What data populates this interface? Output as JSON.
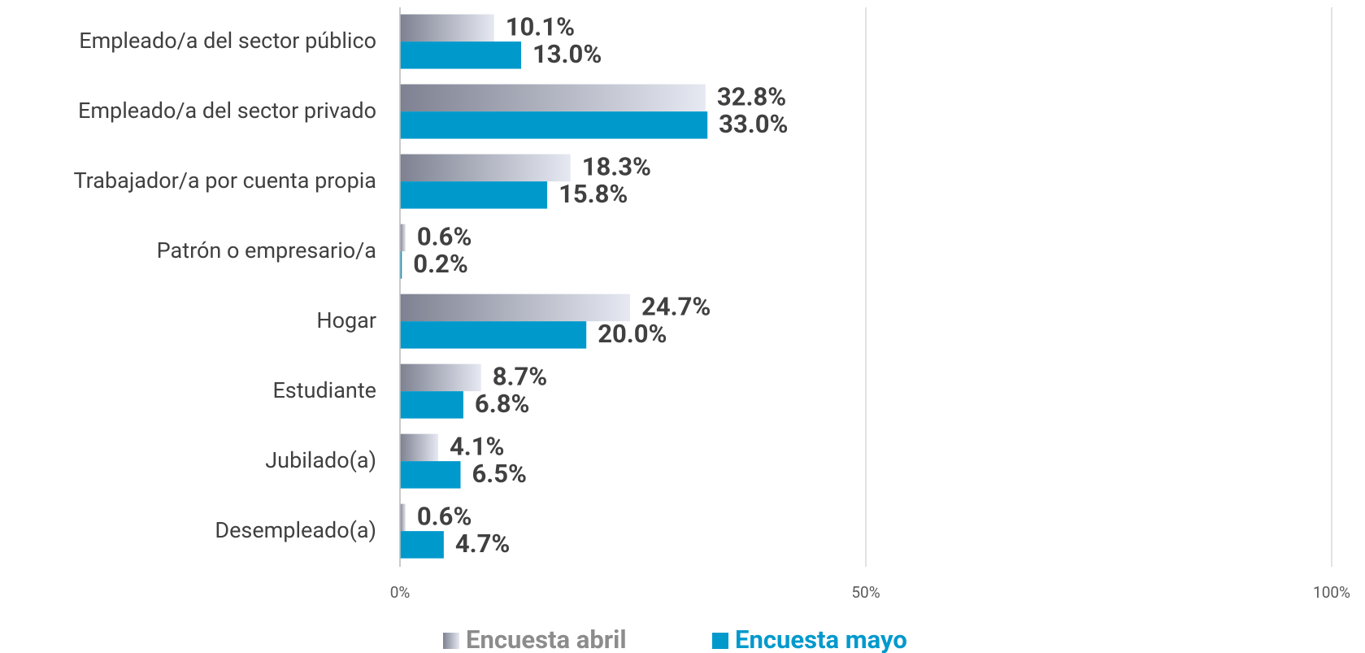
{
  "chart_data": {
    "type": "bar",
    "orientation": "horizontal",
    "categories": [
      "Empleado/a del sector público",
      "Empleado/a del sector privado",
      "Trabajador/a por cuenta propia",
      "Patrón o empresario/a",
      "Hogar",
      "Estudiante",
      "Jubilado(a)",
      "Desempleado(a)"
    ],
    "series": [
      {
        "name": "Encuesta abril",
        "color": "#e6e9f2",
        "values": [
          10.1,
          32.8,
          18.3,
          0.6,
          24.7,
          8.7,
          4.1,
          0.6
        ],
        "value_labels": [
          "10.1%",
          "32.8%",
          "18.3%",
          "0.6%",
          "24.7%",
          "8.7%",
          "4.1%",
          "0.6%"
        ]
      },
      {
        "name": "Encuesta mayo",
        "color": "#0099cc",
        "values": [
          13.0,
          33.0,
          15.8,
          0.2,
          20.0,
          6.8,
          6.5,
          4.7
        ],
        "value_labels": [
          "13.0%",
          "33.0%",
          "15.8%",
          "0.2%",
          "20.0%",
          "6.8%",
          "6.5%",
          "4.7%"
        ]
      }
    ],
    "xlim": [
      0,
      100
    ],
    "xticks": [
      {
        "value": 0,
        "label": "0%"
      },
      {
        "value": 50,
        "label": "50%"
      },
      {
        "value": 100,
        "label": "100%"
      }
    ],
    "grid": true,
    "legend": "bottom"
  }
}
